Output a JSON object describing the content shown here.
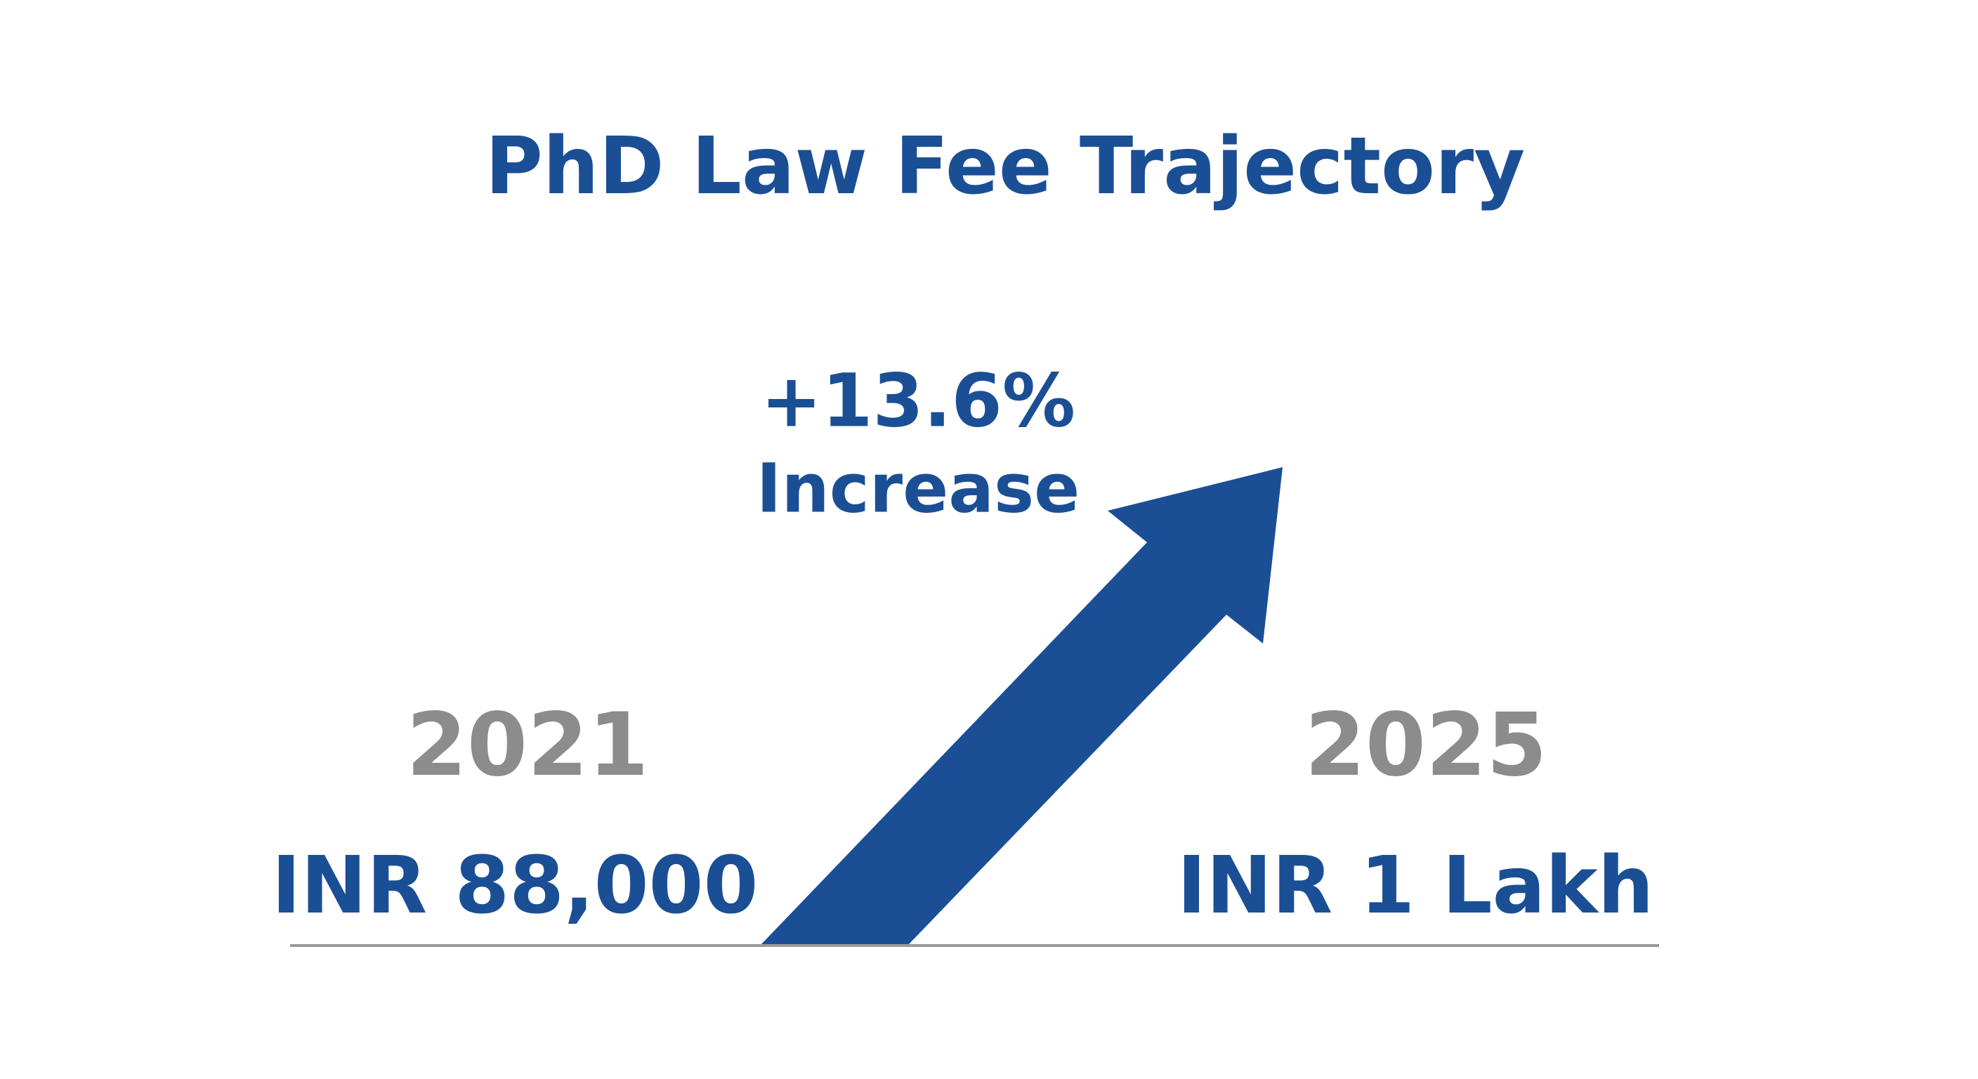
{
  "title": "PhD Law Fee Trajectory",
  "change": {
    "value": "+13.6%",
    "label": "Increase"
  },
  "start": {
    "year": "2021",
    "amount": "INR 88,000"
  },
  "end": {
    "year": "2025",
    "amount": "INR 1 Lakh"
  }
}
